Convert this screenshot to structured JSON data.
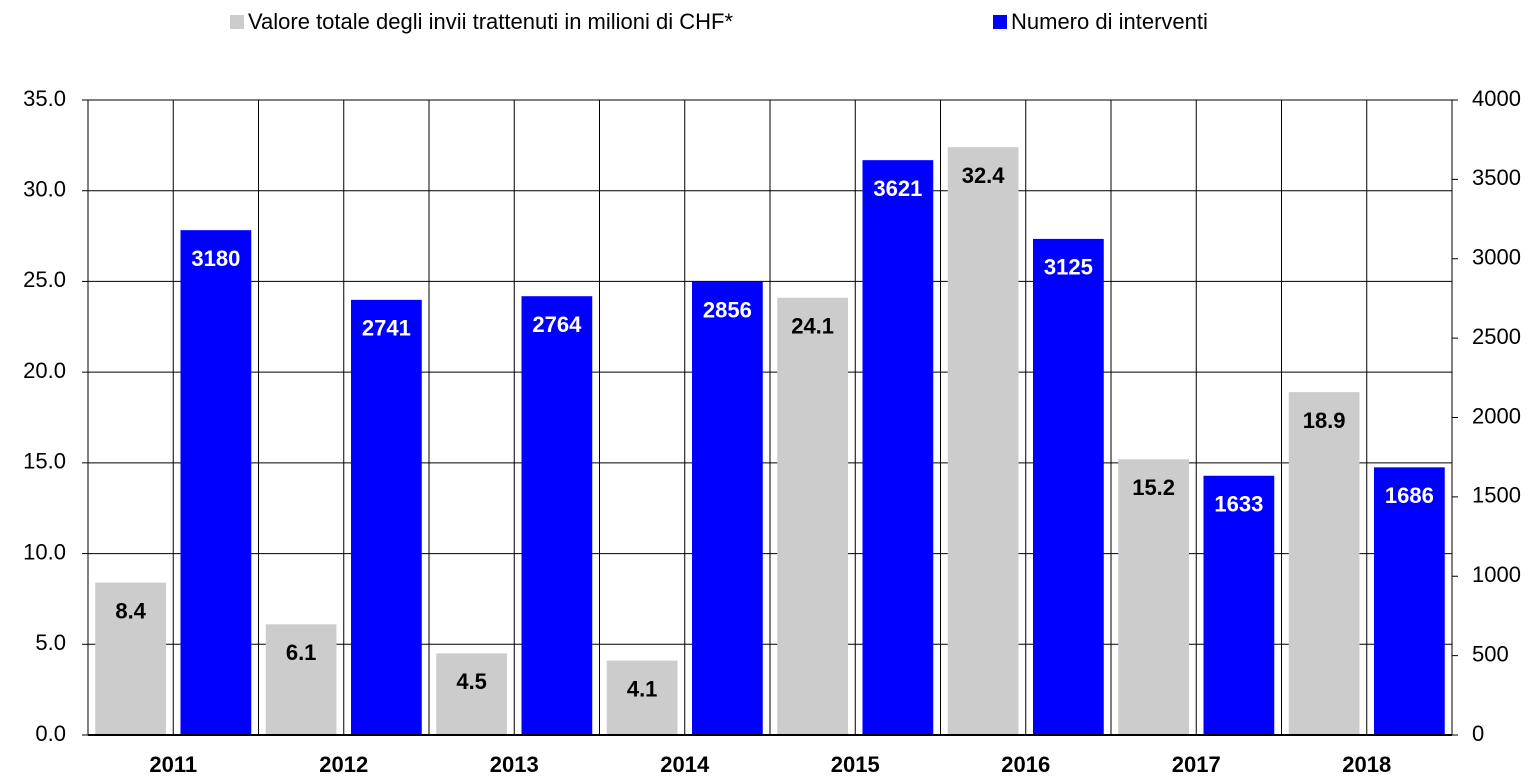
{
  "chart_data": {
    "type": "bar",
    "categories": [
      "2011",
      "2012",
      "2013",
      "2014",
      "2015",
      "2016",
      "2017",
      "2018"
    ],
    "series": [
      {
        "name": "Valore totale degli invii trattenuti in milioni di CHF*",
        "color": "#cccccc",
        "axis": "y",
        "values": [
          8.4,
          6.1,
          4.5,
          4.1,
          24.1,
          32.4,
          15.2,
          18.9
        ]
      },
      {
        "name": "Numero di interventi",
        "color": "#0000ff",
        "axis": "y2",
        "values": [
          3180,
          2741,
          2764,
          2856,
          3621,
          3125,
          1633,
          1686
        ]
      }
    ],
    "ylim": [
      0,
      35
    ],
    "yticks": [
      {
        "value": 0,
        "label": "0.0"
      },
      {
        "value": 5,
        "label": "5.0"
      },
      {
        "value": 10,
        "label": "10.0"
      },
      {
        "value": 15,
        "label": "15.0"
      },
      {
        "value": 20,
        "label": "20.0"
      },
      {
        "value": 25,
        "label": "25.0"
      },
      {
        "value": 30,
        "label": "30.0"
      },
      {
        "value": 35,
        "label": "35.0"
      }
    ],
    "y2lim": [
      0,
      4000
    ],
    "y2ticks": [
      0,
      500,
      1000,
      1500,
      2000,
      2500,
      3000,
      3500,
      4000
    ],
    "grid": true,
    "legend": "top"
  }
}
